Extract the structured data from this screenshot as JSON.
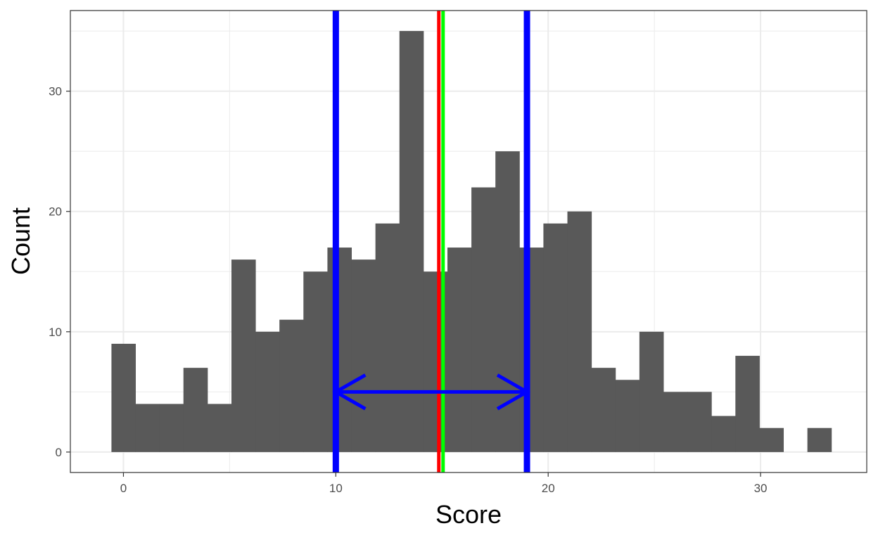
{
  "chart_data": {
    "type": "bar",
    "xlabel": "Score",
    "ylabel": "Count",
    "xlim": [
      -2.5,
      35
    ],
    "ylim": [
      -1.7,
      36.7
    ],
    "grid": true,
    "bin_width": 1.13,
    "bins": [
      {
        "x": 0.0,
        "count": 9
      },
      {
        "x": 1.13,
        "count": 4
      },
      {
        "x": 2.26,
        "count": 4
      },
      {
        "x": 3.39,
        "count": 7
      },
      {
        "x": 4.52,
        "count": 4
      },
      {
        "x": 5.65,
        "count": 16
      },
      {
        "x": 6.78,
        "count": 10
      },
      {
        "x": 7.91,
        "count": 11
      },
      {
        "x": 9.04,
        "count": 15
      },
      {
        "x": 10.17,
        "count": 17
      },
      {
        "x": 11.3,
        "count": 16
      },
      {
        "x": 12.43,
        "count": 19
      },
      {
        "x": 13.56,
        "count": 35
      },
      {
        "x": 14.69,
        "count": 15
      },
      {
        "x": 15.82,
        "count": 17
      },
      {
        "x": 16.95,
        "count": 22
      },
      {
        "x": 18.08,
        "count": 25
      },
      {
        "x": 19.21,
        "count": 17
      },
      {
        "x": 20.34,
        "count": 19
      },
      {
        "x": 21.47,
        "count": 20
      },
      {
        "x": 22.6,
        "count": 7
      },
      {
        "x": 23.73,
        "count": 6
      },
      {
        "x": 24.86,
        "count": 10
      },
      {
        "x": 25.99,
        "count": 5
      },
      {
        "x": 27.12,
        "count": 5
      },
      {
        "x": 28.25,
        "count": 3
      },
      {
        "x": 29.38,
        "count": 8
      },
      {
        "x": 30.51,
        "count": 2
      },
      {
        "x": 31.64,
        "count": 0
      },
      {
        "x": 32.77,
        "count": 2
      }
    ],
    "x_ticks": [
      {
        "value": 0,
        "label": "0"
      },
      {
        "value": 10,
        "label": "10"
      },
      {
        "value": 20,
        "label": "20"
      },
      {
        "value": 30,
        "label": "30"
      }
    ],
    "y_ticks": [
      {
        "value": 0,
        "label": "0"
      },
      {
        "value": 10,
        "label": "10"
      },
      {
        "value": 20,
        "label": "20"
      },
      {
        "value": 30,
        "label": "30"
      }
    ],
    "vertical_lines": [
      {
        "x": 10.0,
        "color": "#0000ff"
      },
      {
        "x": 19.0,
        "color": "#0000ff"
      },
      {
        "x": 14.85,
        "color": "#ff0000"
      },
      {
        "x": 15.05,
        "color": "#00ff00"
      }
    ],
    "arrow": {
      "x_from": 10.0,
      "x_to": 19.0,
      "y": 5,
      "color": "#0000ff"
    },
    "colors": {
      "bar": "#595959",
      "grid": "#ebebeb",
      "panel_border": "#333333"
    }
  }
}
